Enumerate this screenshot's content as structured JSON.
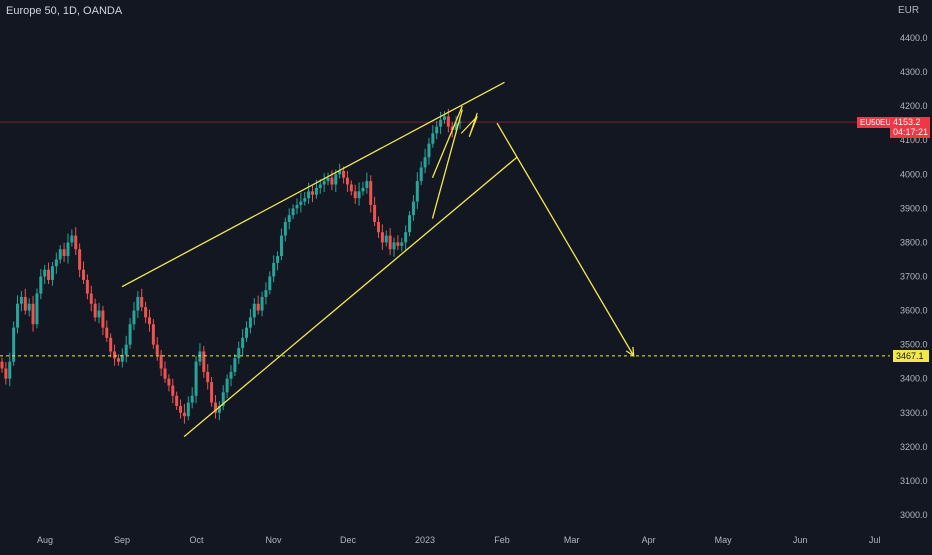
{
  "header": {
    "symbol": "Europe 50, 1D, OANDA",
    "currency": "EUR"
  },
  "price_badges": {
    "symbol_tag": "EU50EUR",
    "last_price": "4153.2",
    "countdown": "04:17:21",
    "level": "3467.1"
  },
  "colors": {
    "background": "#131722",
    "up": "#26a69a",
    "down": "#ef5350",
    "drawing": "#f2e84b",
    "last_price": "#f23645"
  },
  "chart_data": {
    "type": "candlestick",
    "y_axis_ticks": [
      "3000.0",
      "3100.0",
      "3200.0",
      "3300.0",
      "3400.0",
      "3500.0",
      "3600.0",
      "3700.0",
      "3800.0",
      "3900.0",
      "4000.0",
      "4100.0",
      "4200.0",
      "4300.0",
      "4400.0"
    ],
    "ylim": [
      2960,
      4500
    ],
    "x_axis_ticks": [
      "Aug",
      "Sep",
      "Oct",
      "Nov",
      "Dec",
      "2023",
      "Feb",
      "Mar",
      "Apr",
      "May",
      "Jun",
      "Jul"
    ],
    "grid": false,
    "last_price": 4153.2,
    "horizontal_level": 3467.1,
    "trend_lines": [
      {
        "name": "upper-channel",
        "from": [
          "2022-09-01",
          3670
        ],
        "to": [
          "2023-02-02",
          4270
        ]
      },
      {
        "name": "lower-channel",
        "from": [
          "2022-09-26",
          3230
        ],
        "to": [
          "2023-02-07",
          4050
        ]
      },
      {
        "name": "projection-arrow",
        "from": [
          "2023-01-30",
          4150
        ],
        "to": [
          "2023-03-26",
          3467
        ]
      },
      {
        "name": "wedge-upper",
        "from": [
          "2023-01-04",
          3990
        ],
        "to": [
          "2023-01-16",
          4200
        ]
      },
      {
        "name": "wedge-lower",
        "from": [
          "2023-01-04",
          3870
        ],
        "to": [
          "2023-01-16",
          4190
        ]
      }
    ],
    "candles_approx_close": [
      3430,
      3400,
      3450,
      3550,
      3620,
      3640,
      3600,
      3620,
      3560,
      3650,
      3700,
      3720,
      3690,
      3730,
      3750,
      3780,
      3760,
      3800,
      3820,
      3780,
      3720,
      3690,
      3650,
      3620,
      3580,
      3600,
      3550,
      3520,
      3480,
      3460,
      3450,
      3470,
      3500,
      3560,
      3600,
      3640,
      3610,
      3580,
      3560,
      3500,
      3470,
      3430,
      3400,
      3380,
      3350,
      3320,
      3300,
      3290,
      3330,
      3350,
      3450,
      3480,
      3420,
      3390,
      3330,
      3300,
      3320,
      3360,
      3400,
      3420,
      3460,
      3490,
      3520,
      3550,
      3580,
      3620,
      3600,
      3640,
      3660,
      3700,
      3740,
      3760,
      3820,
      3860,
      3880,
      3900,
      3910,
      3920,
      3930,
      3950,
      3940,
      3960,
      3970,
      3980,
      3990,
      3970,
      4000,
      4010,
      3990,
      3970,
      3950,
      3930,
      3950,
      3960,
      3980,
      3910,
      3860,
      3830,
      3800,
      3820,
      3780,
      3800,
      3790,
      3800,
      3830,
      3880,
      3920,
      3980,
      4020,
      4050,
      4090,
      4120,
      4140,
      4160,
      4170,
      4140,
      4130,
      4150,
      4153
    ]
  }
}
